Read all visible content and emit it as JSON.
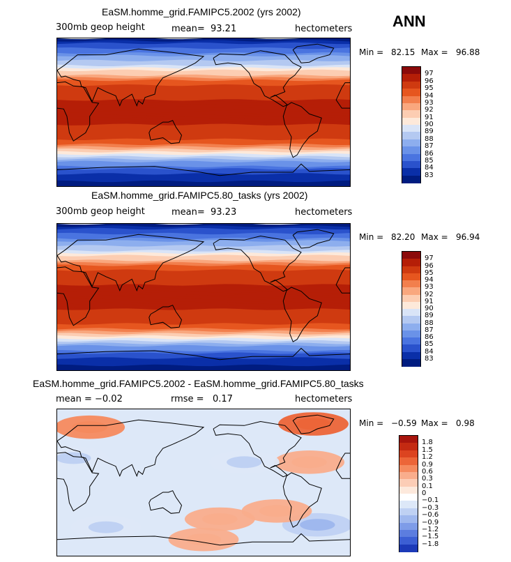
{
  "header": {
    "season": "ANN"
  },
  "panels": [
    {
      "title": "EaSM.homme_grid.FAMIPC5.2002 (yrs 2002)",
      "left_label": "300mb geop height",
      "mid_label": "mean=",
      "mid_value": "93.21",
      "units": "hectometers",
      "min_label": "Min =",
      "min_value": "82.15",
      "max_label": "Max =",
      "max_value": "96.88"
    },
    {
      "title": "EaSM.homme_grid.FAMIPC5.80_tasks (yrs 2002)",
      "left_label": "300mb geop height",
      "mid_label": "mean=",
      "mid_value": "93.23",
      "units": "hectometers",
      "min_label": "Min =",
      "min_value": "82.20",
      "max_label": "Max =",
      "max_value": "96.94"
    },
    {
      "title": "EaSM.homme_grid.FAMIPC5.2002 - EaSM.homme_grid.FAMIPC5.80_tasks",
      "left_label": "mean =",
      "left_value": "−0.02",
      "mid_label": "rmse =",
      "mid_value": "0.17",
      "units": "hectometers",
      "min_label": "Min =",
      "min_value": "−0.59",
      "max_label": "Max =",
      "max_value": "0.98"
    }
  ],
  "chart_data": [
    {
      "type": "heatmap",
      "title": "EaSM.homme_grid.FAMIPC5.2002 (yrs 2002)",
      "variable": "300mb geop height",
      "units": "hectometers",
      "mean": 93.21,
      "min": 82.15,
      "max": 96.88,
      "colorbar_levels": [
        "97",
        "96",
        "95",
        "94",
        "93",
        "92",
        "91",
        "90",
        "89",
        "88",
        "87",
        "86",
        "85",
        "84",
        "83"
      ],
      "colorbar_colors": [
        "#8b0a0a",
        "#b51e07",
        "#cf3a10",
        "#e6561f",
        "#f27f4d",
        "#f9a77e",
        "#fccdb2",
        "#fde9da",
        "#d9e4f7",
        "#b4c9f1",
        "#8daeee",
        "#6a92e8",
        "#4a74e0",
        "#2a52cc",
        "#0a2fa8",
        "#001c80"
      ],
      "latitude_profile": [
        {
          "lat": 90,
          "value": 82.5
        },
        {
          "lat": 75,
          "value": 85.5
        },
        {
          "lat": 60,
          "value": 88.5
        },
        {
          "lat": 50,
          "value": 91.0
        },
        {
          "lat": 40,
          "value": 93.5
        },
        {
          "lat": 30,
          "value": 95.5
        },
        {
          "lat": 0,
          "value": 96.5
        },
        {
          "lat": -30,
          "value": 95.5
        },
        {
          "lat": -40,
          "value": 93.5
        },
        {
          "lat": -50,
          "value": 90.5
        },
        {
          "lat": -60,
          "value": 87.0
        },
        {
          "lat": -75,
          "value": 84.0
        },
        {
          "lat": -90,
          "value": 82.5
        }
      ]
    },
    {
      "type": "heatmap",
      "title": "EaSM.homme_grid.FAMIPC5.80_tasks (yrs 2002)",
      "variable": "300mb geop height",
      "units": "hectometers",
      "mean": 93.23,
      "min": 82.2,
      "max": 96.94,
      "colorbar_levels": [
        "97",
        "96",
        "95",
        "94",
        "93",
        "92",
        "91",
        "90",
        "89",
        "88",
        "87",
        "86",
        "85",
        "84",
        "83"
      ],
      "colorbar_colors": [
        "#8b0a0a",
        "#b51e07",
        "#cf3a10",
        "#e6561f",
        "#f27f4d",
        "#f9a77e",
        "#fccdb2",
        "#fde9da",
        "#d9e4f7",
        "#b4c9f1",
        "#8daeee",
        "#6a92e8",
        "#4a74e0",
        "#2a52cc",
        "#0a2fa8",
        "#001c80"
      ],
      "latitude_profile": [
        {
          "lat": 90,
          "value": 82.5
        },
        {
          "lat": 75,
          "value": 85.5
        },
        {
          "lat": 60,
          "value": 88.5
        },
        {
          "lat": 50,
          "value": 91.0
        },
        {
          "lat": 40,
          "value": 93.5
        },
        {
          "lat": 30,
          "value": 95.5
        },
        {
          "lat": 0,
          "value": 96.5
        },
        {
          "lat": -30,
          "value": 95.5
        },
        {
          "lat": -40,
          "value": 93.5
        },
        {
          "lat": -50,
          "value": 90.5
        },
        {
          "lat": -60,
          "value": 87.0
        },
        {
          "lat": -75,
          "value": 84.0
        },
        {
          "lat": -90,
          "value": 82.5
        }
      ]
    },
    {
      "type": "heatmap",
      "title": "EaSM.homme_grid.FAMIPC5.2002 - EaSM.homme_grid.FAMIPC5.80_tasks",
      "units": "hectometers",
      "mean": -0.02,
      "rmse": 0.17,
      "min": -0.59,
      "max": 0.98,
      "colorbar_levels": [
        "1.8",
        "1.5",
        "1.2",
        "0.9",
        "0.6",
        "0.3",
        "0.1",
        "0",
        "−0.1",
        "−0.3",
        "−0.6",
        "−0.9",
        "−1.2",
        "−1.5",
        "−1.8"
      ],
      "colorbar_colors": [
        "#a8150d",
        "#c42a12",
        "#dc4420",
        "#ec6538",
        "#f58a5e",
        "#f9ad8c",
        "#fccdb6",
        "#fde9dc",
        "#ffffff",
        "#dde8f8",
        "#bfd1f3",
        "#9fb8ee",
        "#7e9ce8",
        "#5c7ddf",
        "#3c5fd4",
        "#1c3ab8"
      ],
      "anomalies": [
        {
          "lon": 315,
          "lat": 72,
          "value": 0.9
        },
        {
          "lon": 40,
          "lat": 68,
          "value": 0.6
        },
        {
          "lon": 310,
          "lat": 25,
          "value": 0.3
        },
        {
          "lon": 20,
          "lat": 30,
          "value": -0.3
        },
        {
          "lon": 230,
          "lat": 25,
          "value": -0.3
        },
        {
          "lon": 180,
          "lat": -70,
          "value": 0.3
        },
        {
          "lon": 60,
          "lat": -55,
          "value": -0.3
        },
        {
          "lon": 200,
          "lat": -45,
          "value": 0.3
        },
        {
          "lon": 320,
          "lat": -52,
          "value": -0.6
        },
        {
          "lon": 270,
          "lat": -35,
          "value": 0.3
        }
      ]
    }
  ]
}
